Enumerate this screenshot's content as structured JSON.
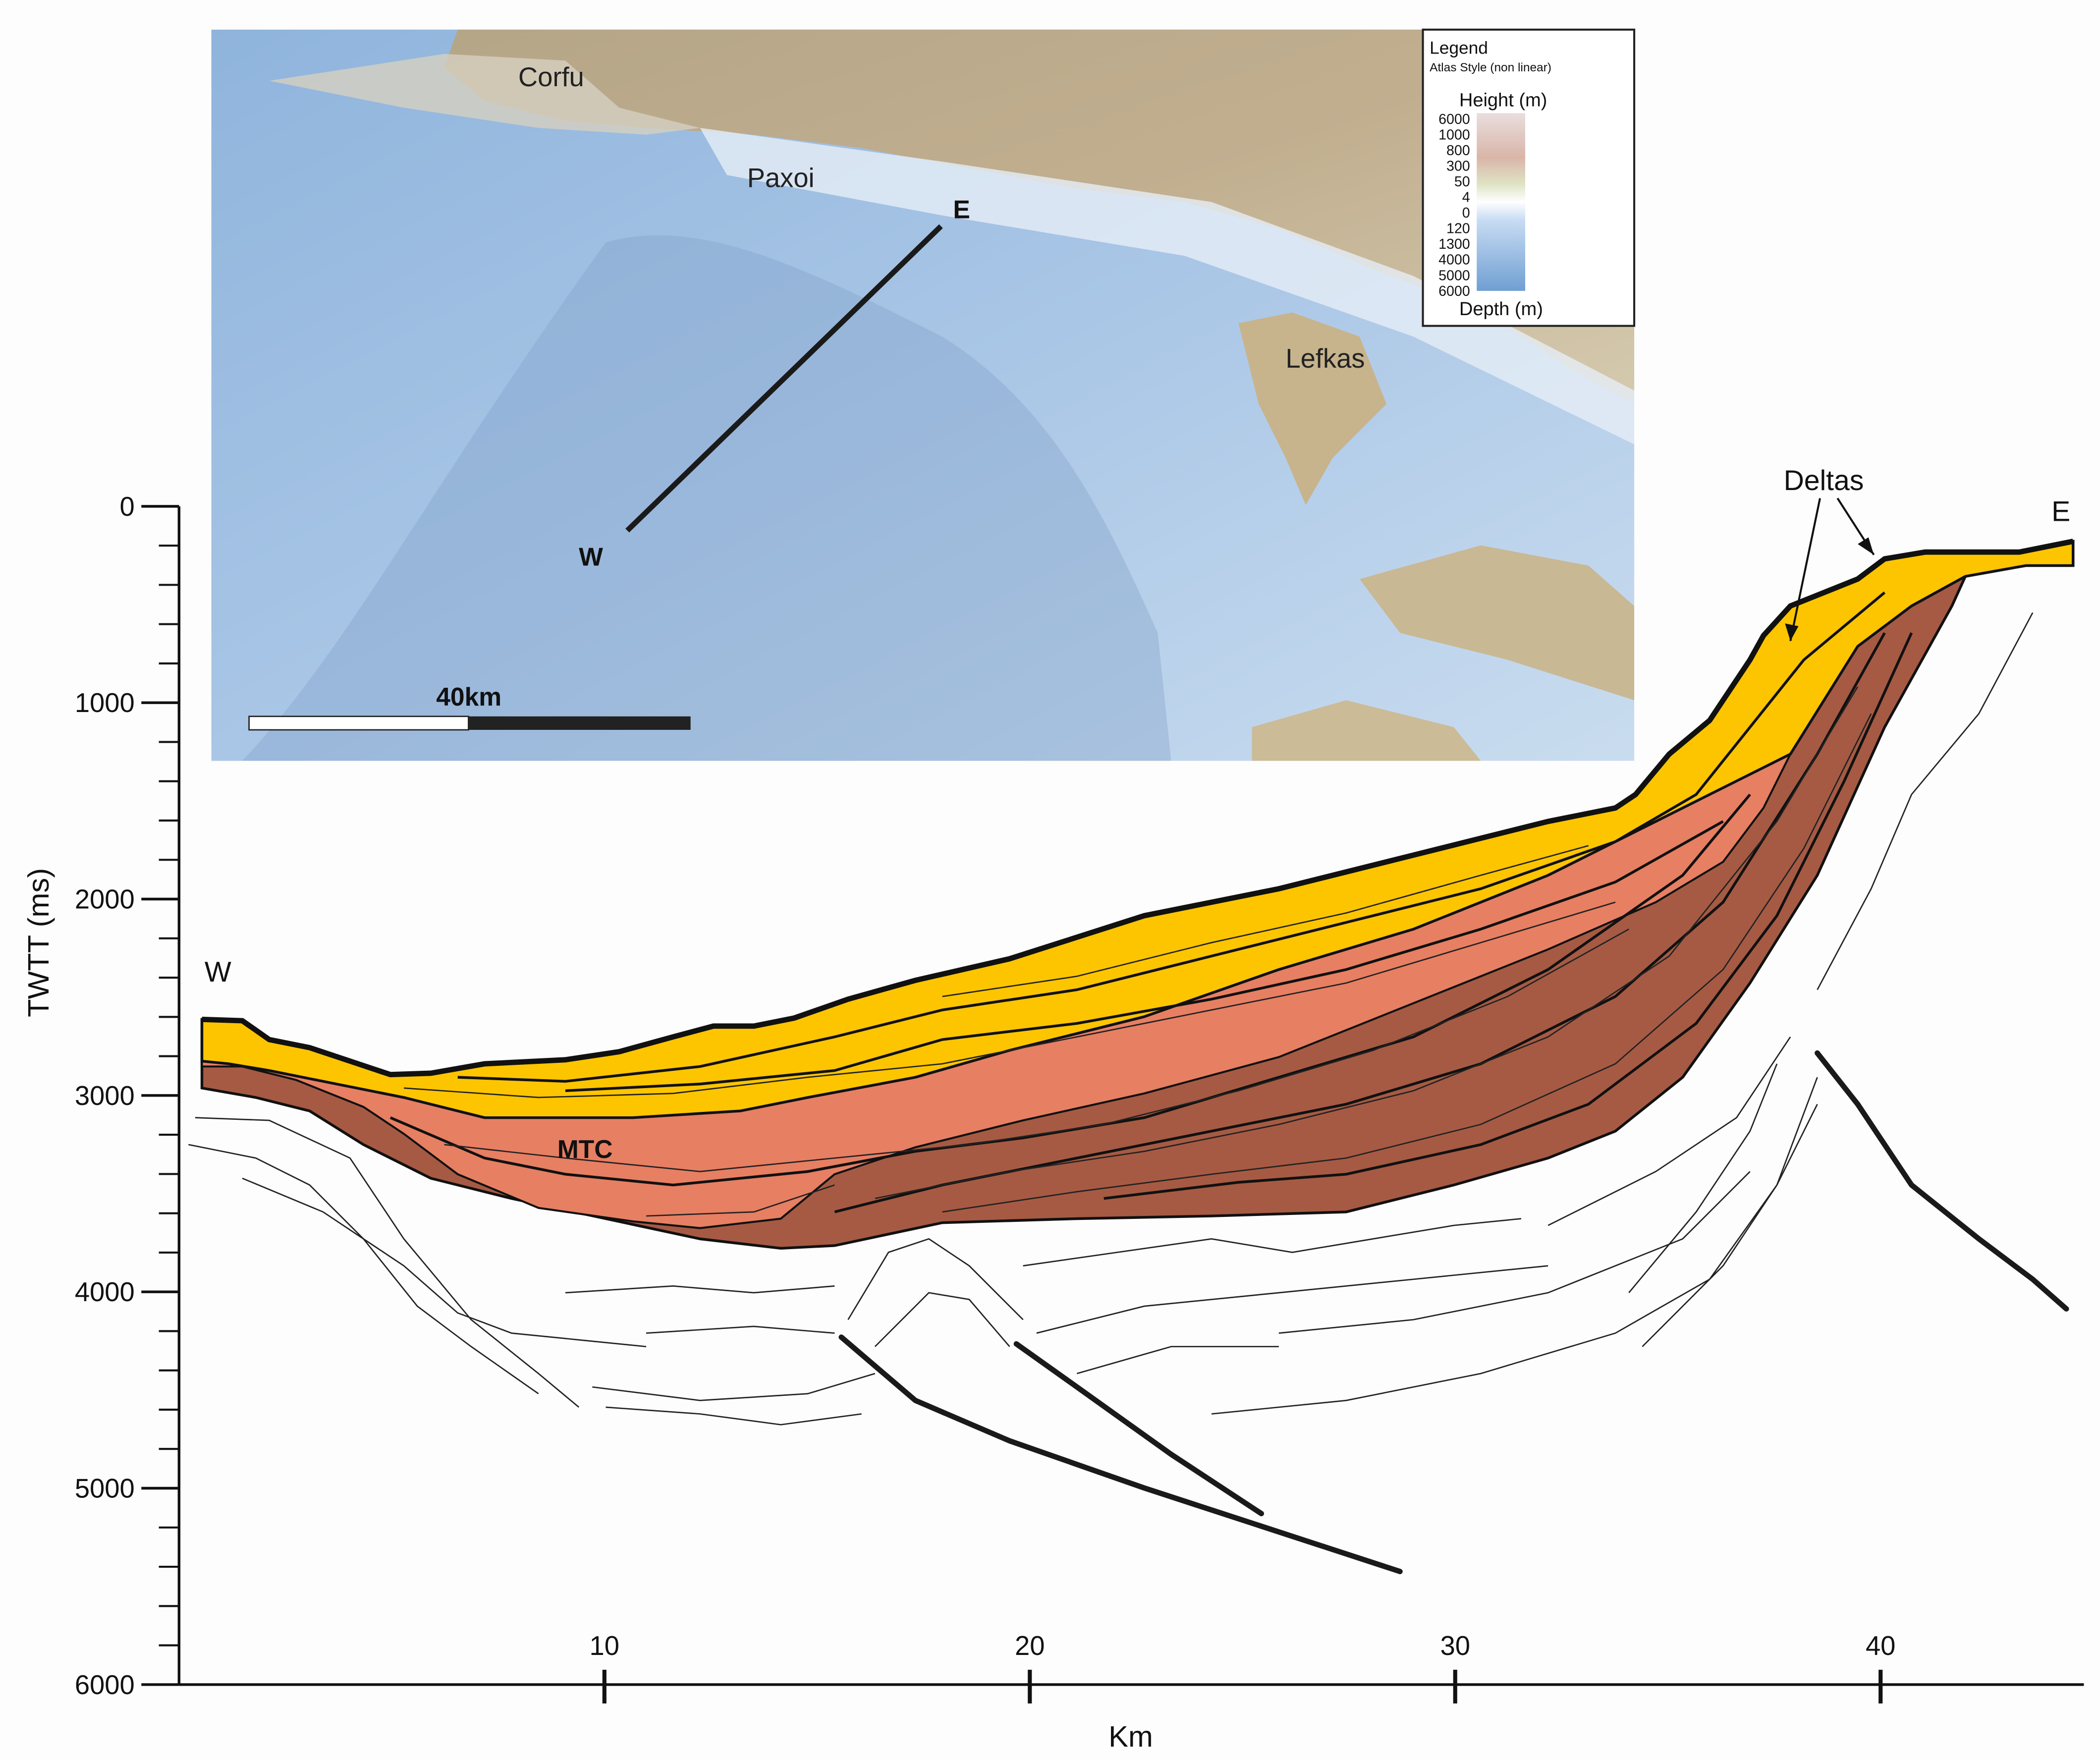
{
  "map": {
    "labels": {
      "corfu": "Corfu",
      "paxoi": "Paxoi",
      "lefkas": "Lefkas",
      "east": "E",
      "west": "W"
    },
    "scale_bar": "40km",
    "legend": {
      "title": "Legend",
      "subtitle": "Atlas Style (non linear)",
      "height_label": "Height (m)",
      "depth_label": "Depth (m)",
      "scale_labels": [
        6000,
        1000,
        800,
        300,
        50,
        4,
        0,
        120,
        1300,
        4000,
        5000,
        6000
      ]
    }
  },
  "section": {
    "labels": {
      "west": "W",
      "east": "E",
      "deltas": "Deltas",
      "mtc": "MTC"
    },
    "y_axis": {
      "title": "TWTT (ms)",
      "ticks": [
        0,
        1000,
        2000,
        3000,
        4000,
        5000,
        6000
      ]
    },
    "x_axis": {
      "title": "Km",
      "ticks": [
        10,
        20,
        30,
        40
      ]
    }
  }
}
